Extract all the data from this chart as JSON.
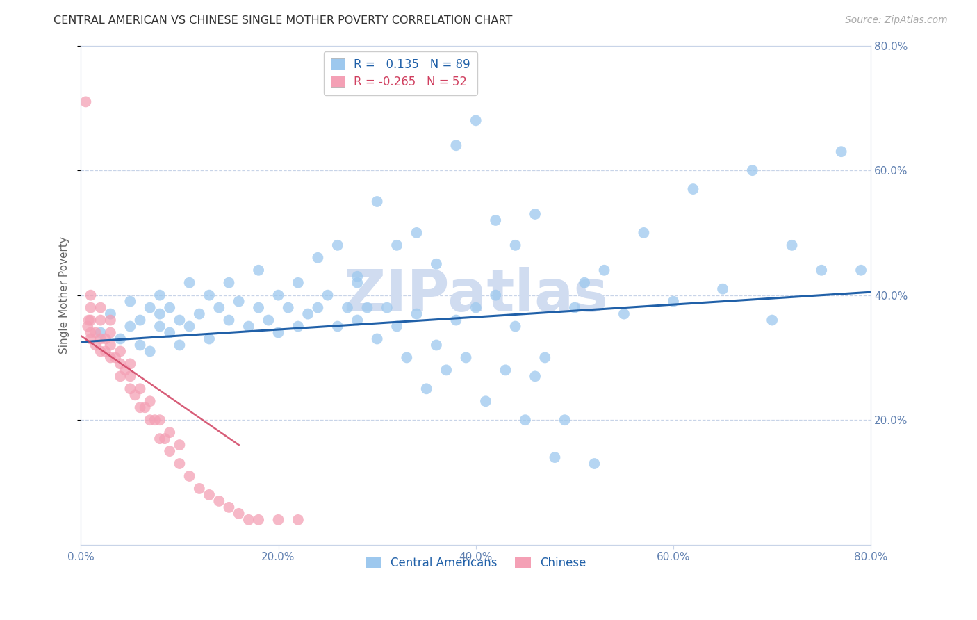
{
  "title": "CENTRAL AMERICAN VS CHINESE SINGLE MOTHER POVERTY CORRELATION CHART",
  "source": "Source: ZipAtlas.com",
  "ylabel": "Single Mother Poverty",
  "xlim": [
    0.0,
    0.8
  ],
  "ylim": [
    0.0,
    0.8
  ],
  "xtick_vals": [
    0.0,
    0.2,
    0.4,
    0.6,
    0.8
  ],
  "xtick_labels": [
    "0.0%",
    "20.0%",
    "40.0%",
    "60.0%",
    "80.0%"
  ],
  "ytick_vals": [
    0.2,
    0.4,
    0.6,
    0.8
  ],
  "ytick_labels": [
    "20.0%",
    "40.0%",
    "60.0%",
    "80.0%"
  ],
  "blue_R": 0.135,
  "blue_N": 89,
  "pink_R": -0.265,
  "pink_N": 52,
  "blue_color": "#9DC8EE",
  "pink_color": "#F4A0B5",
  "blue_line_color": "#2060A8",
  "pink_line_color": "#D04060",
  "grid_color": "#C8D4E8",
  "axis_tick_color": "#6080B0",
  "title_color": "#333333",
  "source_color": "#AAAAAA",
  "watermark_text": "ZIPatlas",
  "watermark_color": "#D0DCF0",
  "legend1_label_blue": "R =   0.135   N = 89",
  "legend1_label_pink": "R = -0.265   N = 52",
  "legend2_label_blue": "Central Americans",
  "legend2_label_pink": "Chinese",
  "blue_line_x0": 0.0,
  "blue_line_x1": 0.8,
  "blue_line_y0": 0.325,
  "blue_line_y1": 0.405,
  "pink_line_x0": 0.0,
  "pink_line_x1": 0.16,
  "pink_line_y0": 0.335,
  "pink_line_y1": 0.16,
  "blue_x": [
    0.02,
    0.03,
    0.04,
    0.05,
    0.05,
    0.06,
    0.06,
    0.07,
    0.07,
    0.08,
    0.08,
    0.08,
    0.09,
    0.09,
    0.1,
    0.1,
    0.11,
    0.11,
    0.12,
    0.13,
    0.13,
    0.14,
    0.15,
    0.15,
    0.16,
    0.17,
    0.18,
    0.18,
    0.19,
    0.2,
    0.2,
    0.21,
    0.22,
    0.22,
    0.23,
    0.24,
    0.25,
    0.26,
    0.27,
    0.28,
    0.28,
    0.29,
    0.3,
    0.31,
    0.32,
    0.33,
    0.34,
    0.35,
    0.36,
    0.37,
    0.38,
    0.39,
    0.4,
    0.41,
    0.42,
    0.43,
    0.44,
    0.45,
    0.46,
    0.47,
    0.48,
    0.49,
    0.5,
    0.51,
    0.52,
    0.53,
    0.55,
    0.57,
    0.6,
    0.62,
    0.65,
    0.68,
    0.7,
    0.72,
    0.75,
    0.77,
    0.79,
    0.38,
    0.4,
    0.42,
    0.44,
    0.46,
    0.36,
    0.34,
    0.32,
    0.3,
    0.28,
    0.26,
    0.24
  ],
  "blue_y": [
    0.34,
    0.37,
    0.33,
    0.35,
    0.39,
    0.32,
    0.36,
    0.31,
    0.38,
    0.35,
    0.37,
    0.4,
    0.34,
    0.38,
    0.32,
    0.36,
    0.35,
    0.42,
    0.37,
    0.33,
    0.4,
    0.38,
    0.36,
    0.42,
    0.39,
    0.35,
    0.38,
    0.44,
    0.36,
    0.34,
    0.4,
    0.38,
    0.35,
    0.42,
    0.37,
    0.38,
    0.4,
    0.35,
    0.38,
    0.36,
    0.42,
    0.38,
    0.33,
    0.38,
    0.35,
    0.3,
    0.37,
    0.25,
    0.32,
    0.28,
    0.36,
    0.3,
    0.38,
    0.23,
    0.4,
    0.28,
    0.35,
    0.2,
    0.27,
    0.3,
    0.14,
    0.2,
    0.38,
    0.42,
    0.13,
    0.44,
    0.37,
    0.5,
    0.39,
    0.57,
    0.41,
    0.6,
    0.36,
    0.48,
    0.44,
    0.63,
    0.44,
    0.64,
    0.68,
    0.52,
    0.48,
    0.53,
    0.45,
    0.5,
    0.48,
    0.55,
    0.43,
    0.48,
    0.46
  ],
  "pink_x": [
    0.005,
    0.007,
    0.008,
    0.01,
    0.01,
    0.01,
    0.01,
    0.01,
    0.015,
    0.015,
    0.02,
    0.02,
    0.02,
    0.02,
    0.025,
    0.025,
    0.03,
    0.03,
    0.03,
    0.03,
    0.035,
    0.04,
    0.04,
    0.04,
    0.045,
    0.05,
    0.05,
    0.05,
    0.055,
    0.06,
    0.06,
    0.065,
    0.07,
    0.07,
    0.075,
    0.08,
    0.08,
    0.085,
    0.09,
    0.09,
    0.1,
    0.1,
    0.11,
    0.12,
    0.13,
    0.14,
    0.15,
    0.16,
    0.17,
    0.18,
    0.2,
    0.22
  ],
  "pink_y": [
    0.71,
    0.35,
    0.36,
    0.33,
    0.34,
    0.36,
    0.38,
    0.4,
    0.32,
    0.34,
    0.31,
    0.33,
    0.36,
    0.38,
    0.31,
    0.33,
    0.3,
    0.32,
    0.34,
    0.36,
    0.3,
    0.27,
    0.29,
    0.31,
    0.28,
    0.25,
    0.27,
    0.29,
    0.24,
    0.22,
    0.25,
    0.22,
    0.2,
    0.23,
    0.2,
    0.17,
    0.2,
    0.17,
    0.15,
    0.18,
    0.13,
    0.16,
    0.11,
    0.09,
    0.08,
    0.07,
    0.06,
    0.05,
    0.04,
    0.04,
    0.04,
    0.04
  ]
}
